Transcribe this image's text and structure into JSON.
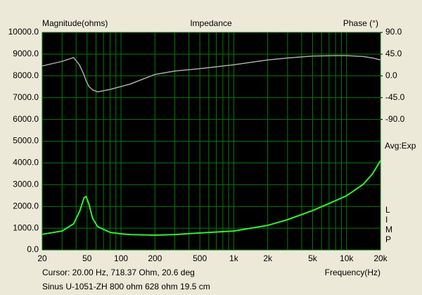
{
  "chart_data": {
    "type": "line",
    "title": "Impedance",
    "y_label": "Magnitude(ohms)",
    "y2_label": "Phase (°)",
    "x_label": "Frequency(Hz)",
    "side_label": "Avg:Exp",
    "side_letters": [
      "L",
      "I",
      "M",
      "P"
    ],
    "cursor_text": "Cursor: 20.00 Hz, 718.37 Ohm, 20.6 deg",
    "footer": "Sinus U-1051-ZH 800 ohm 628 ohm 19.5 cm",
    "xscale": "log",
    "xlim": [
      20,
      20000
    ],
    "xticks": [
      20,
      50,
      100,
      200,
      500,
      {
        "value": 1000,
        "label": "1k"
      },
      {
        "value": 2000,
        "label": "2k"
      },
      {
        "value": 5000,
        "label": "5k"
      },
      {
        "value": 10000,
        "label": "10k"
      },
      {
        "value": 20000,
        "label": "20k"
      }
    ],
    "xgrid_minor": [
      30,
      40,
      60,
      70,
      80,
      90,
      300,
      400,
      600,
      700,
      800,
      900,
      3000,
      4000,
      6000,
      7000,
      8000,
      9000
    ],
    "ylim": [
      0,
      10000
    ],
    "yticks": [
      {
        "value": 0,
        "label": "0.0"
      },
      {
        "value": 1000,
        "label": "1000.0"
      },
      {
        "value": 2000,
        "label": "2000.0"
      },
      {
        "value": 3000,
        "label": "3000.0"
      },
      {
        "value": 4000,
        "label": "4000.0"
      },
      {
        "value": 5000,
        "label": "5000.0"
      },
      {
        "value": 6000,
        "label": "6000.0"
      },
      {
        "value": 7000,
        "label": "7000.0"
      },
      {
        "value": 8000,
        "label": "8000.0"
      },
      {
        "value": 9000,
        "label": "9000.0"
      },
      {
        "value": 10000,
        "label": "10000.0"
      }
    ],
    "y2lim": [
      -360,
      90
    ],
    "y2ticks": [
      {
        "value": 90,
        "label": "90.0"
      },
      {
        "value": 45,
        "label": "45.0"
      },
      {
        "value": 0,
        "label": "0.0"
      },
      {
        "value": -45,
        "label": "-45.0"
      },
      {
        "value": -90,
        "label": "-90.0"
      }
    ],
    "grid": true,
    "x": [
      20,
      30,
      38,
      43,
      47,
      49,
      52,
      56,
      62,
      80,
      100,
      120,
      200,
      300,
      500,
      1000,
      2000,
      3000,
      5000,
      8000,
      10000,
      14000,
      17000,
      20000
    ],
    "series": [
      {
        "name": "Magnitude",
        "color": "#33ee33",
        "axis": "y",
        "values": [
          718,
          870,
          1200,
          1780,
          2400,
          2460,
          2100,
          1450,
          1070,
          810,
          740,
          710,
          680,
          710,
          780,
          870,
          1130,
          1390,
          1810,
          2270,
          2490,
          3010,
          3500,
          4110
        ]
      },
      {
        "name": "Phase",
        "color": "#a8a8a8",
        "axis": "y2",
        "values": [
          20.6,
          30,
          38,
          22,
          2,
          -10,
          -22,
          -29,
          -33,
          -28,
          -22,
          -17,
          3,
          10,
          15,
          23,
          33,
          37,
          41,
          42,
          42,
          40,
          37,
          33
        ]
      }
    ]
  }
}
